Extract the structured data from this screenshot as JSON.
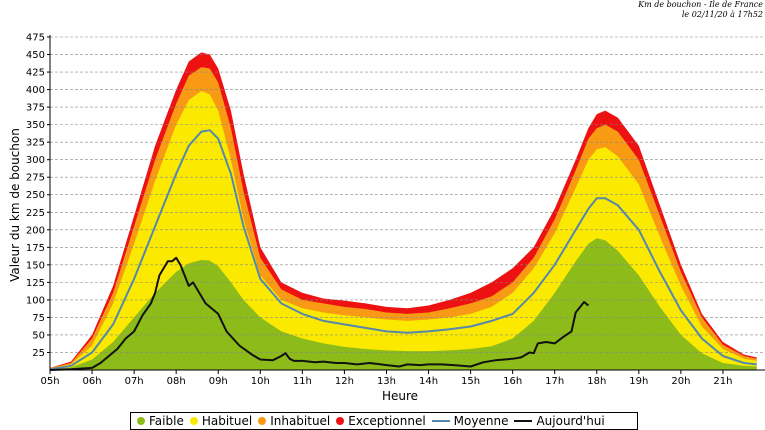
{
  "header": {
    "line1": "Km de bouchon - Ile de France",
    "line2": "le 02/11/20 à 17h52"
  },
  "colors": {
    "faible": "#8cbb1a",
    "habituel": "#fbea00",
    "inhabituel": "#f89a13",
    "exceptionnel": "#ee1111",
    "moyenne": "#5588aa",
    "aujourdhui": "#111111",
    "grid": "#888888"
  },
  "chart_data": {
    "type": "area",
    "title": "",
    "xlabel": "Heure",
    "ylabel": "Valeur du  km de bouchon",
    "xlim": [
      5,
      22
    ],
    "ylim": [
      0,
      475
    ],
    "grid": true,
    "legend_position": "bottom",
    "x_ticks": [
      "05h",
      "06h",
      "07h",
      "08h",
      "09h",
      "10h",
      "11h",
      "12h",
      "13h",
      "14h",
      "15h",
      "16h",
      "17h",
      "18h",
      "19h",
      "20h",
      "21h"
    ],
    "y_ticks": [
      25,
      50,
      75,
      100,
      125,
      150,
      175,
      200,
      225,
      250,
      275,
      300,
      325,
      350,
      375,
      400,
      425,
      450,
      475
    ],
    "series": [
      {
        "name": "Exceptionnel",
        "x": [
          5,
          5.5,
          6,
          6.5,
          7,
          7.5,
          8,
          8.3,
          8.6,
          8.8,
          9,
          9.3,
          9.6,
          10,
          10.5,
          11,
          11.5,
          12,
          12.5,
          13,
          13.5,
          14,
          14.5,
          15,
          15.5,
          16,
          16.5,
          17,
          17.5,
          17.8,
          18,
          18.2,
          18.5,
          19,
          19.5,
          20,
          20.5,
          21,
          21.5,
          21.8
        ],
        "values": [
          3,
          12,
          50,
          120,
          220,
          320,
          400,
          440,
          453,
          450,
          430,
          370,
          280,
          175,
          125,
          110,
          102,
          99,
          95,
          90,
          88,
          92,
          100,
          110,
          125,
          145,
          175,
          230,
          300,
          345,
          365,
          370,
          360,
          320,
          235,
          150,
          80,
          40,
          22,
          18
        ]
      },
      {
        "name": "Inhabituel",
        "x": [
          5,
          5.5,
          6,
          6.5,
          7,
          7.5,
          8,
          8.3,
          8.6,
          8.8,
          9,
          9.3,
          9.6,
          10,
          10.5,
          11,
          11.5,
          12,
          12.5,
          13,
          13.5,
          14,
          14.5,
          15,
          15.5,
          16,
          16.5,
          17,
          17.5,
          17.8,
          18,
          18.2,
          18.5,
          19,
          19.5,
          20,
          20.5,
          21,
          21.5,
          21.8
        ],
        "values": [
          3,
          10,
          45,
          110,
          205,
          300,
          380,
          420,
          432,
          430,
          410,
          345,
          255,
          160,
          115,
          100,
          95,
          90,
          87,
          82,
          80,
          82,
          88,
          95,
          105,
          125,
          160,
          215,
          285,
          330,
          345,
          350,
          340,
          300,
          220,
          140,
          75,
          36,
          20,
          16
        ]
      },
      {
        "name": "Habituel",
        "x": [
          5,
          5.5,
          6,
          6.5,
          7,
          7.5,
          8,
          8.3,
          8.6,
          8.8,
          9,
          9.3,
          9.6,
          10,
          10.5,
          11,
          11.5,
          12,
          12.5,
          13,
          13.5,
          14,
          14.5,
          15,
          15.5,
          16,
          16.5,
          17,
          17.5,
          17.8,
          18,
          18.2,
          18.5,
          19,
          19.5,
          20,
          20.5,
          21,
          21.5,
          21.8
        ],
        "values": [
          2,
          8,
          35,
          95,
          180,
          270,
          350,
          385,
          398,
          393,
          370,
          300,
          215,
          135,
          100,
          88,
          82,
          78,
          75,
          72,
          70,
          72,
          75,
          80,
          90,
          110,
          145,
          195,
          260,
          300,
          315,
          318,
          305,
          265,
          190,
          120,
          62,
          30,
          16,
          13
        ]
      },
      {
        "name": "Faible",
        "x": [
          5,
          5.5,
          6,
          6.5,
          7,
          7.5,
          8,
          8.3,
          8.6,
          8.8,
          9,
          9.3,
          9.6,
          10,
          10.5,
          11,
          11.5,
          12,
          12.5,
          13,
          13.5,
          14,
          14.5,
          15,
          15.5,
          16,
          16.5,
          17,
          17.5,
          17.8,
          18,
          18.2,
          18.5,
          19,
          19.5,
          20,
          20.5,
          21,
          21.5,
          21.8
        ],
        "values": [
          1,
          4,
          15,
          40,
          75,
          110,
          140,
          152,
          157,
          156,
          148,
          125,
          100,
          75,
          55,
          45,
          38,
          33,
          30,
          28,
          27,
          27,
          28,
          30,
          34,
          45,
          70,
          110,
          155,
          180,
          188,
          185,
          170,
          135,
          90,
          50,
          24,
          10,
          6,
          5
        ]
      },
      {
        "name": "Moyenne",
        "x": [
          5,
          5.5,
          6,
          6.5,
          7,
          7.5,
          8,
          8.3,
          8.6,
          8.8,
          9,
          9.3,
          9.6,
          10,
          10.5,
          11,
          11.5,
          12,
          12.5,
          13,
          13.5,
          14,
          14.5,
          15,
          15.5,
          16,
          16.5,
          17,
          17.5,
          17.8,
          18,
          18.2,
          18.5,
          19,
          19.5,
          20,
          20.5,
          21,
          21.5,
          21.8
        ],
        "values": [
          1,
          6,
          25,
          65,
          130,
          205,
          280,
          320,
          340,
          342,
          330,
          280,
          205,
          130,
          95,
          80,
          70,
          65,
          60,
          55,
          53,
          55,
          58,
          62,
          70,
          80,
          110,
          150,
          200,
          230,
          245,
          245,
          235,
          200,
          140,
          85,
          45,
          20,
          10,
          8
        ]
      },
      {
        "name": "Aujourd'hui",
        "x": [
          5,
          5.5,
          6,
          6.2,
          6.4,
          6.6,
          6.8,
          7,
          7.2,
          7.4,
          7.5,
          7.6,
          7.8,
          7.9,
          8,
          8.1,
          8.2,
          8.3,
          8.4,
          8.5,
          8.6,
          8.7,
          8.8,
          9,
          9.2,
          9.5,
          9.8,
          10,
          10.3,
          10.5,
          10.6,
          10.7,
          10.8,
          11,
          11.3,
          11.5,
          11.8,
          12,
          12.3,
          12.6,
          13,
          13.3,
          13.5,
          13.8,
          14,
          14.3,
          14.6,
          15,
          15.3,
          15.6,
          16,
          16.2,
          16.4,
          16.5,
          16.6,
          16.8,
          17,
          17.2,
          17.4,
          17.5,
          17.7,
          17.8
        ],
        "values": [
          0,
          1,
          3,
          10,
          20,
          30,
          45,
          55,
          78,
          95,
          110,
          135,
          155,
          155,
          160,
          150,
          135,
          120,
          125,
          115,
          105,
          95,
          90,
          80,
          55,
          35,
          22,
          15,
          14,
          20,
          24,
          16,
          13,
          13,
          11,
          12,
          10,
          10,
          8,
          10,
          7,
          5,
          8,
          7,
          8,
          8,
          7,
          5,
          11,
          14,
          16,
          18,
          25,
          24,
          38,
          40,
          38,
          47,
          55,
          82,
          97,
          92
        ]
      }
    ]
  },
  "legend": {
    "items": [
      "Faible",
      "Habituel",
      "Inhabituel",
      "Exceptionnel",
      "Moyenne",
      "Aujourd'hui"
    ]
  }
}
